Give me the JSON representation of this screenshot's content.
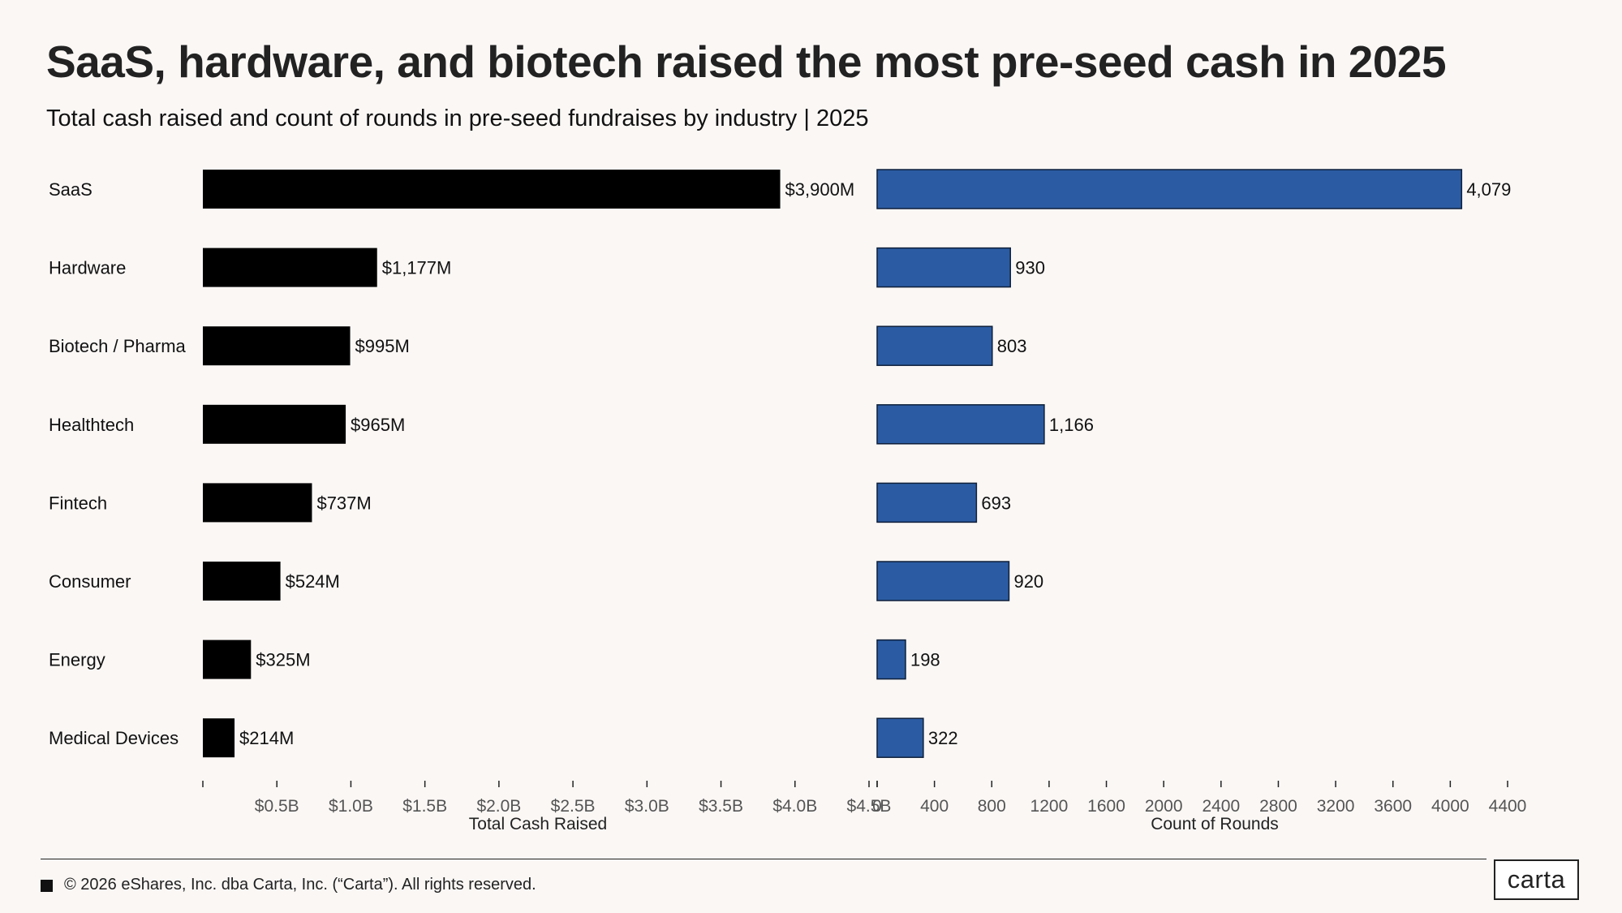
{
  "header": {
    "title": "SaaS, hardware, and biotech raised the most pre-seed cash in 2025",
    "subtitle": "Total cash raised and count of rounds in pre-seed fundraises by industry | 2025"
  },
  "chart_data": [
    {
      "type": "bar",
      "orientation": "horizontal",
      "categories": [
        "SaaS",
        "Hardware",
        "Biotech / Pharma",
        "Healthtech",
        "Fintech",
        "Consumer",
        "Energy",
        "Medical Devices"
      ],
      "values": [
        3900,
        1177,
        995,
        965,
        737,
        524,
        325,
        214
      ],
      "value_labels": [
        "$3,900M",
        "$1,177M",
        "$995M",
        "$965M",
        "$737M",
        "$524M",
        "$325M",
        "$214M"
      ],
      "xlabel": "Total Cash Raised",
      "xlim": [
        0,
        4500
      ],
      "xticks": [
        500,
        1000,
        1500,
        2000,
        2500,
        3000,
        3500,
        4000,
        4500
      ],
      "xtick_labels": [
        "$0.5B",
        "$1.0B",
        "$1.5B",
        "$2.0B",
        "$2.5B",
        "$3.0B",
        "$3.5B",
        "$4.0B",
        "$4.5B"
      ],
      "color": "#000000",
      "grid": false
    },
    {
      "type": "bar",
      "orientation": "horizontal",
      "categories": [
        "SaaS",
        "Hardware",
        "Biotech / Pharma",
        "Healthtech",
        "Fintech",
        "Consumer",
        "Energy",
        "Medical Devices"
      ],
      "values": [
        4079,
        930,
        803,
        1166,
        693,
        920,
        198,
        322
      ],
      "value_labels": [
        "4,079",
        "930",
        "803",
        "1,166",
        "693",
        "920",
        "198",
        "322"
      ],
      "xlabel": "Count of Rounds",
      "xlim": [
        0,
        4400
      ],
      "xticks": [
        0,
        400,
        800,
        1200,
        1600,
        2000,
        2400,
        2800,
        3200,
        3600,
        4000,
        4400
      ],
      "xtick_labels": [
        "0",
        "400",
        "800",
        "1200",
        "1600",
        "2000",
        "2400",
        "2800",
        "3200",
        "3600",
        "4000",
        "4400"
      ],
      "color": "#2b5ca3",
      "grid": false
    }
  ],
  "footer": {
    "copyright": "© 2026 eShares, Inc. dba Carta, Inc. (“Carta”). All rights reserved.",
    "logo_text": "carta"
  }
}
